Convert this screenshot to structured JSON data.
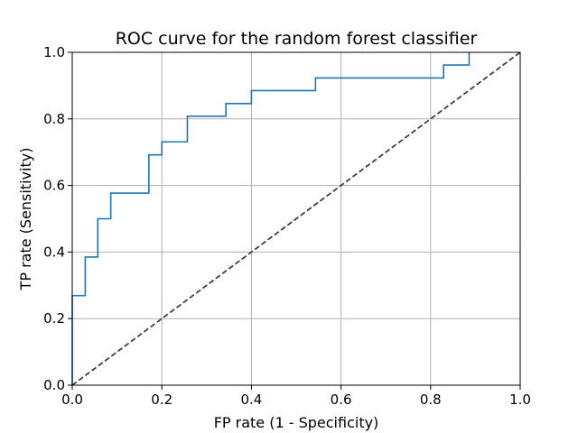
{
  "chart_data": {
    "type": "line",
    "title": "ROC curve for the random forest classifier",
    "xlabel": "FP rate (1 - Specificity)",
    "ylabel": "TP rate (Sensitivity)",
    "xlim": [
      0.0,
      1.0
    ],
    "ylim": [
      0.0,
      1.0
    ],
    "xticks": [
      "0.0",
      "0.2",
      "0.4",
      "0.6",
      "0.8",
      "1.0"
    ],
    "yticks": [
      "0.0",
      "0.2",
      "0.4",
      "0.6",
      "0.8",
      "1.0"
    ],
    "grid": true,
    "legend": "none",
    "series": [
      {
        "style": "step",
        "color": "#1f77b4",
        "x": [
          0.0,
          0.0,
          0.029,
          0.029,
          0.057,
          0.057,
          0.086,
          0.086,
          0.171,
          0.171,
          0.2,
          0.2,
          0.257,
          0.257,
          0.343,
          0.343,
          0.4,
          0.4,
          0.543,
          0.543,
          0.829,
          0.829,
          0.886,
          0.886
        ],
        "y": [
          0.0,
          0.269,
          0.269,
          0.385,
          0.385,
          0.5,
          0.5,
          0.577,
          0.577,
          0.692,
          0.692,
          0.731,
          0.731,
          0.808,
          0.808,
          0.846,
          0.846,
          0.885,
          0.885,
          0.923,
          0.923,
          0.962,
          0.962,
          1.0
        ]
      },
      {
        "style": "dashed",
        "color": "#404040",
        "x": [
          0.0,
          1.0
        ],
        "y": [
          0.0,
          1.0
        ]
      }
    ]
  }
}
